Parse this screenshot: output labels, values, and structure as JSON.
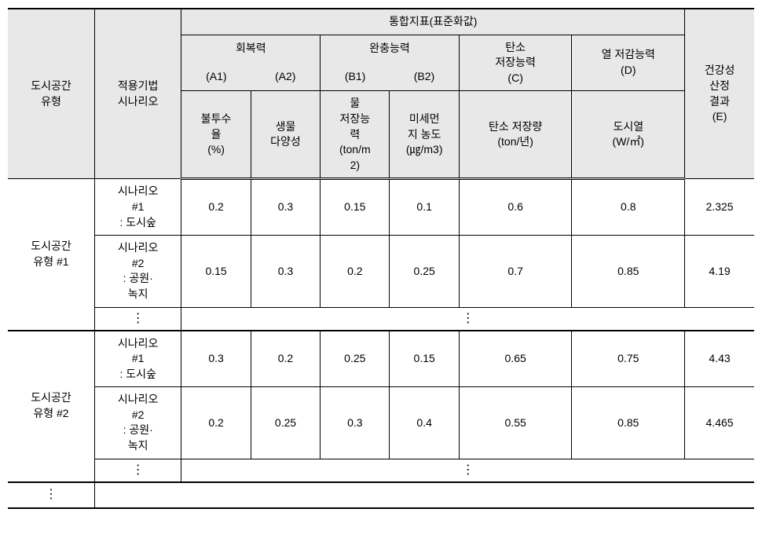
{
  "colors": {
    "header_bg": "#e8e8e8",
    "body_bg": "#ffffff",
    "border": "#000000",
    "text": "#000000"
  },
  "header": {
    "space_type": "도시공간\n유형",
    "scenario": "적용기법\n시나리오",
    "composite": "통합지표(표준화값)",
    "resilience": "회복력",
    "buffer": "완충능력",
    "carbon": "탄소\n저장능력",
    "heat": "열 저감능력",
    "result": "건강성\n산정\n결과\n(E)",
    "a1": "(A1)",
    "a2": "(A2)",
    "b1": "(B1)",
    "b2": "(B2)",
    "c": "(C)",
    "d": "(D)",
    "a1_lbl": "불투수\n율\n(%)",
    "a2_lbl": "생물\n다양성",
    "b1_lbl": "물\n저장능\n력\n(ton/m\n2)",
    "b2_lbl": "미세먼\n지 농도\n(㎍/m3)",
    "c_lbl": "탄소 저장량\n(ton/년)",
    "d_lbl": "도시열\n(W/㎡)"
  },
  "groups": [
    {
      "title": "도시공간\n유형 #1",
      "rows": [
        {
          "scenario": "시나리오\n#1\n: 도시숲",
          "a1": "0.2",
          "a2": "0.3",
          "b1": "0.15",
          "b2": "0.1",
          "c": "0.6",
          "d": "0.8",
          "e": "2.325"
        },
        {
          "scenario": "시나리오\n#2\n: 공원·\n녹지",
          "a1": "0.15",
          "a2": "0.3",
          "b1": "0.2",
          "b2": "0.25",
          "c": "0.7",
          "d": "0.85",
          "e": "4.19"
        }
      ]
    },
    {
      "title": "도시공간\n유형 #2",
      "rows": [
        {
          "scenario": "시나리오\n#1\n: 도시숲",
          "a1": "0.3",
          "a2": "0.2",
          "b1": "0.25",
          "b2": "0.15",
          "c": "0.65",
          "d": "0.75",
          "e": "4.43"
        },
        {
          "scenario": "시나리오\n#2\n: 공원·\n녹지",
          "a1": "0.2",
          "a2": "0.25",
          "b1": "0.3",
          "b2": "0.4",
          "c": "0.55",
          "d": "0.85",
          "e": "4.465"
        }
      ]
    }
  ],
  "vdots": "⋮"
}
